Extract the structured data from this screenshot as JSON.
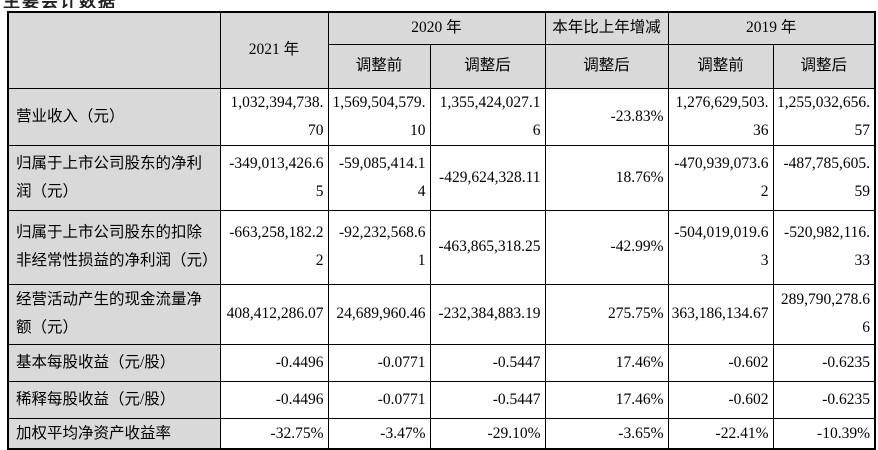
{
  "page": {
    "clipped_title": "主要会计数据"
  },
  "colors": {
    "header_bg": "#d9d9d9",
    "border": "#000000",
    "text": "#000000"
  },
  "table": {
    "header": {
      "label_col": "",
      "col_2021": "2021 年",
      "col_2020": "2020 年",
      "col_change": "本年比上年增减",
      "col_2019": "2019 年",
      "sub_2020_before": "调整前",
      "sub_2020_after": "调整后",
      "sub_change_after": "调整后",
      "sub_2019_before": "调整前",
      "sub_2019_after": "调整后"
    },
    "rows": [
      {
        "label": "营业收入（元）",
        "y2021": "1,032,394,738.70",
        "y2020_before": "1,569,504,579.10",
        "y2020_after": "1,355,424,027.16",
        "change": "-23.83%",
        "y2019_before": "1,276,629,503.36",
        "y2019_after": "1,255,032,656.57"
      },
      {
        "label": "归属于上市公司股东的净利润（元）",
        "y2021": "-349,013,426.65",
        "y2020_before": "-59,085,414.14",
        "y2020_after": "-429,624,328.11",
        "change": "18.76%",
        "y2019_before": "-470,939,073.62",
        "y2019_after": "-487,785,605.59"
      },
      {
        "label": "归属于上市公司股东的扣除非经常性损益的净利润（元）",
        "y2021": "-663,258,182.22",
        "y2020_before": "-92,232,568.61",
        "y2020_after": "-463,865,318.25",
        "change": "-42.99%",
        "y2019_before": "-504,019,019.63",
        "y2019_after": "-520,982,116.33"
      },
      {
        "label": "经营活动产生的现金流量净额（元）",
        "y2021": "408,412,286.07",
        "y2020_before": "24,689,960.46",
        "y2020_after": "-232,384,883.19",
        "change": "275.75%",
        "y2019_before": "363,186,134.67",
        "y2019_after": "289,790,278.66"
      },
      {
        "label": "基本每股收益（元/股）",
        "y2021": "-0.4496",
        "y2020_before": "-0.0771",
        "y2020_after": "-0.5447",
        "change": "17.46%",
        "y2019_before": "-0.602",
        "y2019_after": "-0.6235"
      },
      {
        "label": "稀释每股收益（元/股）",
        "y2021": "-0.4496",
        "y2020_before": "-0.0771",
        "y2020_after": "-0.5447",
        "change": "17.46%",
        "y2019_before": "-0.602",
        "y2019_after": "-0.6235"
      },
      {
        "label": "加权平均净资产收益率",
        "y2021": "-32.75%",
        "y2020_before": "-3.47%",
        "y2020_after": "-29.10%",
        "change": "-3.65%",
        "y2019_before": "-22.41%",
        "y2019_after": "-10.39%"
      }
    ]
  }
}
